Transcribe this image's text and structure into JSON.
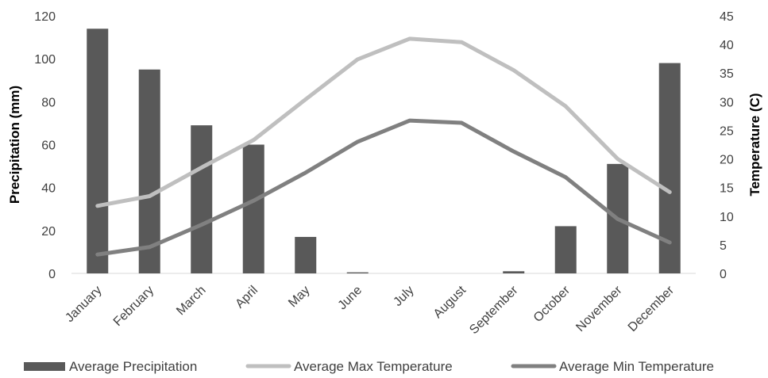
{
  "chart_data": {
    "type": "bar",
    "categories": [
      "January",
      "February",
      "March",
      "April",
      "May",
      "June",
      "July",
      "August",
      "September",
      "October",
      "November",
      "December"
    ],
    "series": [
      {
        "name": "Average Precipitation",
        "kind": "bar",
        "axis": "left",
        "color": "#595959",
        "values": [
          114,
          95,
          69,
          60,
          17,
          0.5,
          0,
          0,
          1,
          22,
          51,
          98
        ]
      },
      {
        "name": "Average Max Temperature",
        "kind": "line",
        "axis": "right",
        "color": "#bfbfbf",
        "values": [
          11.8,
          13.5,
          18.5,
          23.3,
          30.4,
          37.4,
          41.0,
          40.4,
          35.5,
          29.2,
          20.0,
          14.2
        ]
      },
      {
        "name": "Average Min Temperature",
        "kind": "line",
        "axis": "right",
        "color": "#808080",
        "values": [
          3.3,
          4.6,
          8.5,
          12.7,
          17.6,
          23.0,
          26.7,
          26.3,
          21.3,
          16.8,
          9.5,
          5.4
        ]
      }
    ],
    "ylabel": "Precipitation (mm)",
    "ylim": [
      0,
      120
    ],
    "yticks": [
      "0",
      "20",
      "40",
      "60",
      "80",
      "100",
      "120"
    ],
    "y2label": "Temperature (C)",
    "y2lim": [
      0,
      45
    ],
    "y2ticks": [
      "0",
      "5",
      "10",
      "15",
      "20",
      "25",
      "30",
      "35",
      "40",
      "45"
    ],
    "xlabel": "",
    "title": "",
    "grid": false,
    "legend_position": "bottom"
  }
}
